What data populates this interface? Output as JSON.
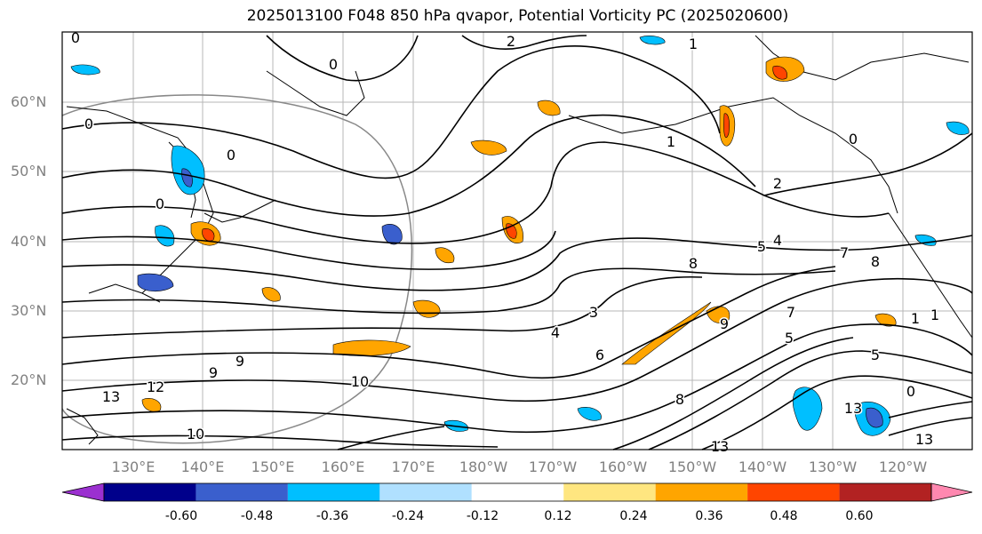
{
  "title": "2025013100 F048 850 hPa qvapor, Potential Vorticity PC (2025020600)",
  "lat_labels": [
    "60°N",
    "50°N",
    "40°N",
    "30°N",
    "20°N"
  ],
  "lon_labels": [
    "130°E",
    "140°E",
    "150°E",
    "160°E",
    "170°E",
    "180°W",
    "170°W",
    "160°W",
    "150°W",
    "140°W",
    "130°W",
    "120°W"
  ],
  "contour_labels": [
    "0",
    "0",
    "0",
    "0",
    "0",
    "0",
    "2",
    "1",
    "1",
    "2",
    "4",
    "5",
    "7",
    "8",
    "8",
    "8",
    "9",
    "9",
    "10",
    "10",
    "12",
    "13",
    "13",
    "13",
    "13",
    "3",
    "4",
    "5",
    "5",
    "6",
    "7",
    "9",
    "0",
    "1",
    "1"
  ],
  "colorbar": {
    "ticks": [
      "-0.60",
      "-0.48",
      "-0.36",
      "-0.24",
      "-0.12",
      "0.12",
      "0.24",
      "0.36",
      "0.48",
      "0.60"
    ],
    "colors": [
      "#9b30d0",
      "#00008b",
      "#3a5fcd",
      "#00bfff",
      "#b0e0ff",
      "#ffffff",
      "#ffe680",
      "#ffa500",
      "#ff4500",
      "#b22222",
      "#ff88b0"
    ]
  }
}
